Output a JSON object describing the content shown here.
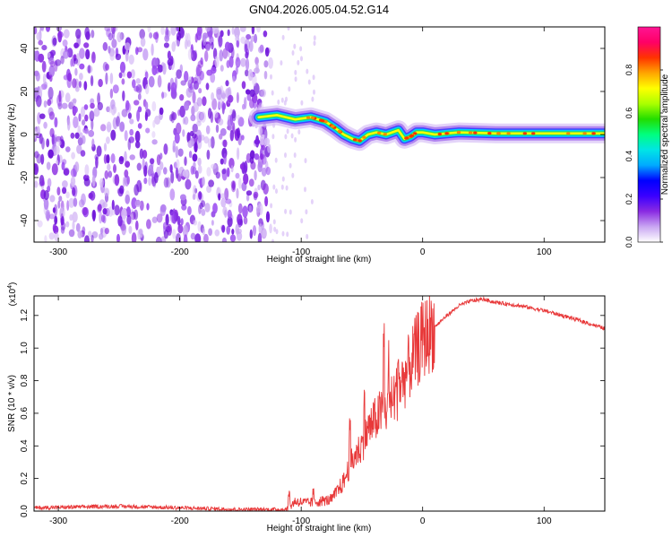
{
  "title": "GN04.2026.005.04.52.G14",
  "chart_data": [
    {
      "type": "heatmap",
      "title": "GN04.2026.005.04.52.G14",
      "xlabel": "Height of straight line (km)",
      "ylabel": "Frequency (Hz)",
      "xlim": [
        -320,
        150
      ],
      "ylim": [
        -50,
        50
      ],
      "xticks": [
        "-300",
        "-200",
        "-100",
        "0",
        "100"
      ],
      "yticks": [
        "-40",
        "-20",
        "0",
        "20",
        "40"
      ],
      "noise_region_x": [
        -320,
        -125
      ],
      "signal_start_x": -135,
      "signal_track": {
        "x": [
          -135,
          -120,
          -105,
          -92,
          -80,
          -72,
          -65,
          -58,
          -52,
          -45,
          -38,
          -30,
          -25,
          -20,
          -15,
          -10,
          -5,
          0,
          10,
          30,
          60,
          100,
          150
        ],
        "freq": [
          8,
          9,
          7,
          8,
          6,
          3,
          0,
          -2,
          -3,
          0,
          1,
          0,
          1,
          2,
          -2,
          -1,
          1,
          1,
          0,
          1,
          0.5,
          0.5,
          0.5
        ]
      },
      "colorbar": {
        "label": "Normalized spectral amplitude",
        "range": [
          0,
          1
        ],
        "ticks": [
          "0.0",
          "0.2",
          "0.4",
          "0.6",
          "0.8"
        ],
        "colors": [
          "#ffffff",
          "#c9a6f2",
          "#8a2be2",
          "#3a00ff",
          "#0000ff",
          "#00aaff",
          "#00e5e5",
          "#00ff7f",
          "#22dd00",
          "#aaff00",
          "#ffff00",
          "#ffa500",
          "#ff3300",
          "#ff0066",
          "#ff1493"
        ]
      },
      "colors": {
        "noise": "#8a2be2",
        "track_core": "#ffff00",
        "track_edge": "#00ccff"
      }
    },
    {
      "type": "line",
      "xlabel": "Height of straight line (km)",
      "ylabel": "SNR (10 * v/v)",
      "multiplier": "(x10",
      "multiplier_exp": "4",
      "multiplier_close": ")",
      "xlim": [
        -320,
        150
      ],
      "ylim": [
        0,
        1.32
      ],
      "xticks": [
        "-300",
        "-200",
        "-100",
        "0",
        "100"
      ],
      "yticks": [
        "0.0",
        "0.2",
        "0.4",
        "0.6",
        "0.8",
        "1.0",
        "1.2"
      ],
      "series": [
        {
          "name": "SNR",
          "color": "#e8393a",
          "x": [
            -320,
            -250,
            -200,
            -150,
            -112,
            -105,
            -95,
            -85,
            -75,
            -65,
            -60,
            -55,
            -50,
            -45,
            -40,
            -35,
            -30,
            -25,
            -20,
            -15,
            -10,
            -5,
            0,
            10,
            20,
            30,
            40,
            50,
            60,
            80,
            100,
            120,
            150
          ],
          "y": [
            0.02,
            0.03,
            0.02,
            0.01,
            0.01,
            0.06,
            0.05,
            0.06,
            0.07,
            0.18,
            0.28,
            0.35,
            0.4,
            0.5,
            0.55,
            0.6,
            0.62,
            0.68,
            0.74,
            0.82,
            0.9,
            0.98,
            1.05,
            1.13,
            1.2,
            1.26,
            1.29,
            1.3,
            1.28,
            1.26,
            1.23,
            1.19,
            1.12
          ]
        }
      ],
      "spikes": [
        {
          "x": -32,
          "y": 1.12
        },
        {
          "x": -28,
          "y": 0.92
        },
        {
          "x": -48,
          "y": 0.75
        },
        {
          "x": -60,
          "y": 0.52
        },
        {
          "x": -20,
          "y": 0.95
        },
        {
          "x": -110,
          "y": 0.12
        },
        {
          "x": -90,
          "y": 0.12
        }
      ]
    }
  ]
}
